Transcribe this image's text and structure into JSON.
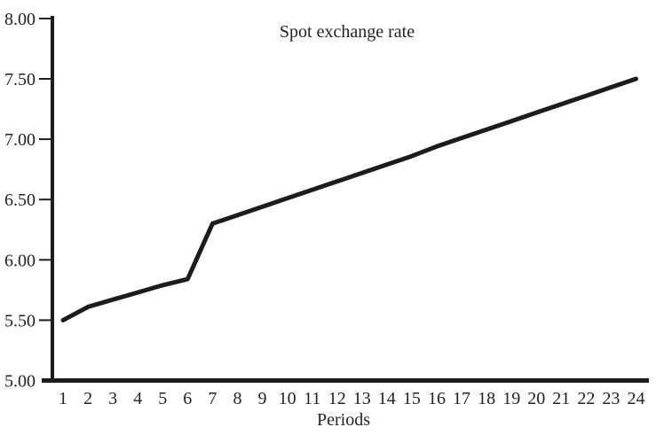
{
  "chart_data": {
    "type": "line",
    "title": "Spot exchange rate",
    "xlabel": "Periods",
    "ylabel": "",
    "x": [
      1,
      2,
      3,
      4,
      5,
      6,
      7,
      8,
      9,
      10,
      11,
      12,
      13,
      14,
      15,
      16,
      17,
      18,
      19,
      20,
      21,
      22,
      23,
      24
    ],
    "series": [
      {
        "name": "Spot exchange rate",
        "values": [
          5.5,
          5.61,
          5.67,
          5.73,
          5.79,
          5.84,
          6.3,
          6.37,
          6.44,
          6.51,
          6.58,
          6.65,
          6.72,
          6.79,
          6.86,
          6.94,
          7.01,
          7.08,
          7.15,
          7.22,
          7.29,
          7.36,
          7.43,
          7.5
        ]
      }
    ],
    "xlim": [
      1,
      24
    ],
    "ylim": [
      5.0,
      8.0
    ],
    "y_tick_values": [
      5.0,
      5.5,
      6.0,
      6.5,
      7.0,
      7.5,
      8.0
    ],
    "y_tick_labels": [
      "5.00",
      "5.50",
      "6.00",
      "6.50",
      "7.00",
      "7.50",
      "8.00"
    ],
    "grid": false,
    "legend": "none",
    "line_color": "#1d1c1a",
    "axis_color": "#1d1c1a",
    "text_color": "#232226",
    "background": "#ffffff"
  }
}
